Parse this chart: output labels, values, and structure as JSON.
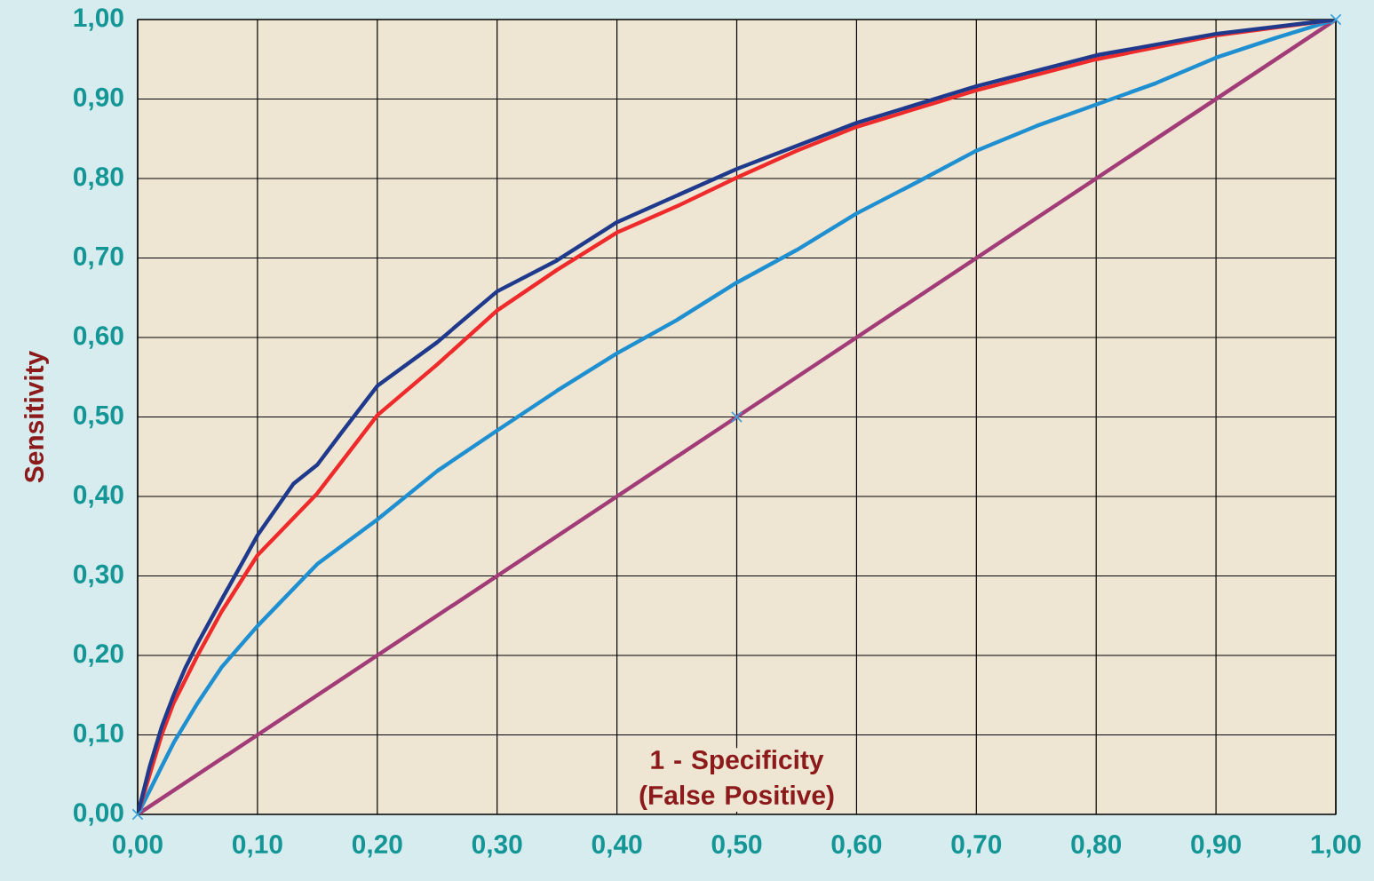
{
  "chart_data": {
    "type": "line",
    "xlabel": "1 - Specificity (False Positive)",
    "ylabel": "Sensitivity",
    "xlim": [
      0,
      1
    ],
    "ylim": [
      0,
      1
    ],
    "xticks": [
      {
        "value": 0,
        "label": "0,00"
      },
      {
        "value": 0.1,
        "label": "0,10"
      },
      {
        "value": 0.2,
        "label": "0,20"
      },
      {
        "value": 0.3,
        "label": "0,30"
      },
      {
        "value": 0.4,
        "label": "0,40"
      },
      {
        "value": 0.5,
        "label": "0,50"
      },
      {
        "value": 0.6,
        "label": "0,60"
      },
      {
        "value": 0.7,
        "label": "0,70"
      },
      {
        "value": 0.8,
        "label": "0,80"
      },
      {
        "value": 0.9,
        "label": "0,90"
      },
      {
        "value": 1,
        "label": "1,00"
      }
    ],
    "yticks": [
      {
        "value": 0,
        "label": "0,00"
      },
      {
        "value": 0.1,
        "label": "0,10"
      },
      {
        "value": 0.2,
        "label": "0,20"
      },
      {
        "value": 0.3,
        "label": "0,30"
      },
      {
        "value": 0.4,
        "label": "0,40"
      },
      {
        "value": 0.5,
        "label": "0,50"
      },
      {
        "value": 0.6,
        "label": "0,60"
      },
      {
        "value": 0.7,
        "label": "0,70"
      },
      {
        "value": 0.8,
        "label": "0,80"
      },
      {
        "value": 0.9,
        "label": "0,90"
      },
      {
        "value": 1,
        "label": "1,00"
      }
    ],
    "grid": true,
    "marker": "none",
    "line_style": "solid",
    "series": [
      {
        "color": "#a23c78",
        "marker": "cross",
        "x": [
          0,
          0.5,
          1
        ],
        "values": [
          0,
          0.5,
          1
        ]
      },
      {
        "color": "#1e8fd0",
        "x": [
          0,
          0.01,
          0.02,
          0.03,
          0.05,
          0.07,
          0.1,
          0.15,
          0.2,
          0.25,
          0.3,
          0.35,
          0.4,
          0.45,
          0.5,
          0.55,
          0.6,
          0.65,
          0.7,
          0.75,
          0.8,
          0.85,
          0.9,
          0.95,
          1
        ],
        "values": [
          0,
          0.03,
          0.06,
          0.09,
          0.14,
          0.185,
          0.237,
          0.315,
          0.371,
          0.432,
          0.483,
          0.533,
          0.58,
          0.622,
          0.669,
          0.71,
          0.756,
          0.795,
          0.835,
          0.866,
          0.893,
          0.92,
          0.952,
          0.977,
          1
        ]
      },
      {
        "color": "#ee2a2a",
        "x": [
          0,
          0.01,
          0.02,
          0.03,
          0.05,
          0.07,
          0.1,
          0.15,
          0.2,
          0.25,
          0.3,
          0.35,
          0.4,
          0.45,
          0.5,
          0.55,
          0.6,
          0.7,
          0.8,
          0.9,
          1
        ],
        "values": [
          0,
          0.05,
          0.1,
          0.14,
          0.2,
          0.255,
          0.326,
          0.404,
          0.502,
          0.566,
          0.634,
          0.685,
          0.732,
          0.765,
          0.801,
          0.835,
          0.865,
          0.911,
          0.95,
          0.98,
          1
        ]
      },
      {
        "color": "#1f3a8c",
        "x": [
          0,
          0.01,
          0.02,
          0.03,
          0.04,
          0.05,
          0.07,
          0.1,
          0.13,
          0.15,
          0.17,
          0.2,
          0.25,
          0.3,
          0.35,
          0.4,
          0.5,
          0.6,
          0.7,
          0.8,
          0.9,
          1
        ],
        "values": [
          0,
          0.06,
          0.11,
          0.15,
          0.185,
          0.215,
          0.27,
          0.351,
          0.416,
          0.44,
          0.48,
          0.539,
          0.594,
          0.658,
          0.697,
          0.745,
          0.812,
          0.87,
          0.916,
          0.955,
          0.982,
          1
        ]
      }
    ]
  }
}
